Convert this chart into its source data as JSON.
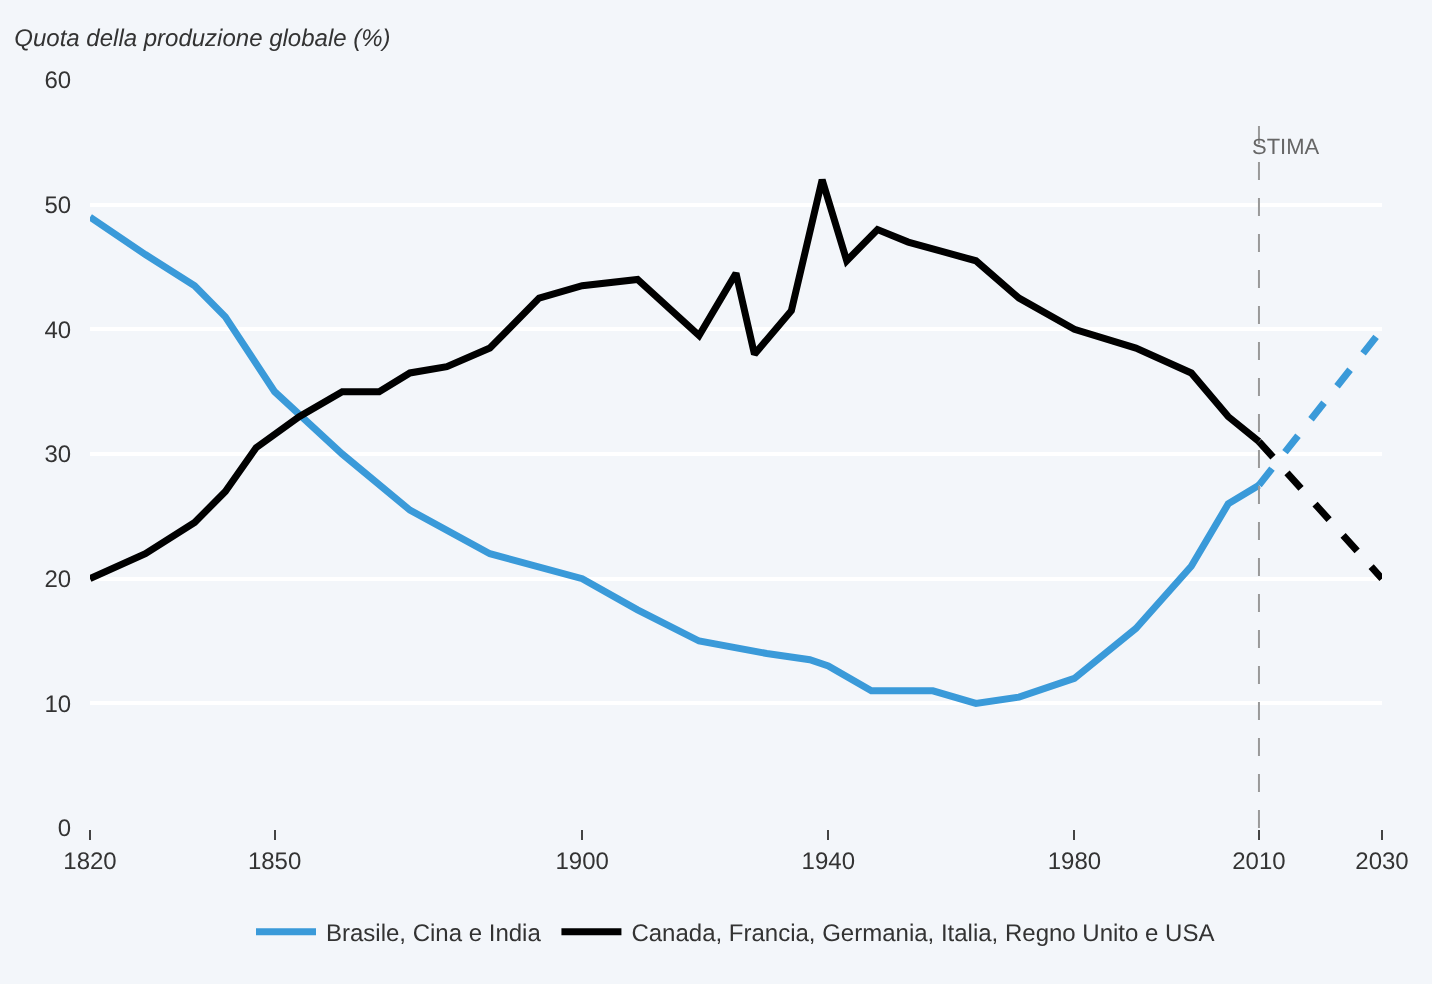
{
  "chart_data": {
    "type": "line",
    "ylabel": "Quota della produzione globale (%)",
    "x": [
      1820,
      1829,
      1837,
      1842,
      1850,
      1861,
      1872,
      1885,
      1900,
      1909,
      1919,
      1930,
      1937,
      1940,
      1947,
      1952,
      1957,
      1964,
      1971,
      1980,
      1990,
      1999,
      2005,
      2010
    ],
    "series": [
      {
        "name": "Brasile, Cina e India",
        "color": "#3a9ad9",
        "values": [
          49,
          46,
          43.5,
          41,
          35,
          30,
          25.5,
          22,
          20,
          17.5,
          15,
          14,
          13.5,
          13,
          11,
          11,
          11,
          10,
          10.5,
          12,
          16,
          21,
          26,
          27.5
        ]
      },
      {
        "name": "Canada, Francia, Germania, Italia, Regno Unito e USA",
        "color": "#000000",
        "x": [
          1820,
          1829,
          1837,
          1842,
          1847,
          1854,
          1861,
          1867,
          1872,
          1878,
          1885,
          1893,
          1900,
          1909,
          1919,
          1925,
          1928,
          1934,
          1939,
          1943,
          1948,
          1953,
          1964,
          1971,
          1980,
          1990,
          1999,
          2005,
          2010
        ],
        "values": [
          20,
          22,
          24.5,
          27,
          30.5,
          33,
          35,
          35,
          36.5,
          37,
          38.5,
          42.5,
          43.5,
          44,
          39.5,
          44.5,
          38,
          41.5,
          52,
          45.5,
          48,
          47,
          45.5,
          42.5,
          40,
          38.5,
          36.5,
          33,
          31
        ]
      },
      {
        "color": "#3a9ad9",
        "line_style": "dashed",
        "x": [
          2010,
          2030
        ],
        "values": [
          27.5,
          40
        ]
      },
      {
        "color": "#000000",
        "line_style": "dashed",
        "x": [
          2010,
          2030
        ],
        "values": [
          31,
          20
        ]
      }
    ],
    "xlim": [
      1820,
      2030
    ],
    "xticks": [
      1820,
      1850,
      1900,
      1940,
      1980,
      2010,
      2030
    ],
    "ylim": [
      0,
      60
    ],
    "yticks": [
      0,
      10,
      20,
      30,
      40,
      50,
      60
    ],
    "ref_lines": [
      {
        "axis": "x",
        "value": 2010,
        "color": "#999999",
        "line_style": "dashed"
      }
    ],
    "annotations": [
      "STIMA"
    ],
    "grid": "y",
    "legend": "bottom",
    "line_style": "solid",
    "marker": "none"
  }
}
